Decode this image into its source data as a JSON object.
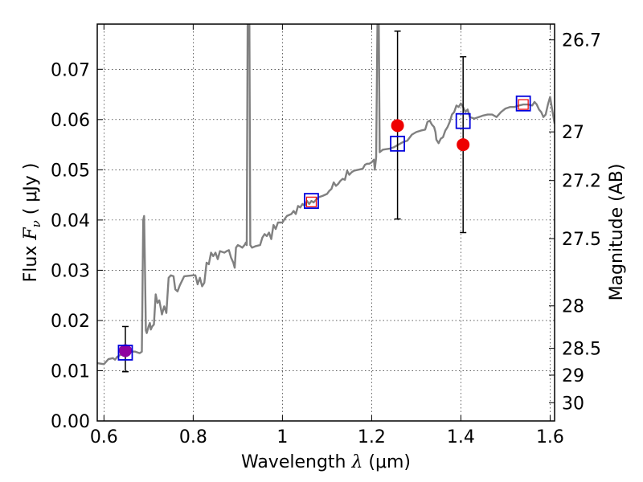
{
  "chart_data": {
    "type": "line",
    "xlabel_text": "Wavelength",
    "xlabel_symbol": "λ",
    "xlabel_unit": "(μm)",
    "ylabel_text": "Flux",
    "ylabel_symbol": "F",
    "ylabel_subscript": "ν",
    "ylabel_unit": "( μJy )",
    "y2label": "Magnitude (AB)",
    "xlim": [
      0.585,
      1.61
    ],
    "ylim": [
      0.0,
      0.079
    ],
    "grid": true,
    "x_ticks": [
      {
        "value": 0.6,
        "label": "0.6"
      },
      {
        "value": 0.8,
        "label": "0.8"
      },
      {
        "value": 1.0,
        "label": "1"
      },
      {
        "value": 1.2,
        "label": "1.2"
      },
      {
        "value": 1.4,
        "label": "1.4"
      },
      {
        "value": 1.6,
        "label": "1.6"
      }
    ],
    "y_ticks": [
      {
        "value": 0.0,
        "label": "0.00"
      },
      {
        "value": 0.01,
        "label": "0.01"
      },
      {
        "value": 0.02,
        "label": "0.02"
      },
      {
        "value": 0.03,
        "label": "0.03"
      },
      {
        "value": 0.04,
        "label": "0.04"
      },
      {
        "value": 0.05,
        "label": "0.05"
      },
      {
        "value": 0.06,
        "label": "0.06"
      },
      {
        "value": 0.07,
        "label": "0.07"
      }
    ],
    "y2_ticks": [
      {
        "value": 26.7,
        "label": "26.7"
      },
      {
        "value": 27.0,
        "label": "27"
      },
      {
        "value": 27.2,
        "label": "27.2"
      },
      {
        "value": 27.5,
        "label": "27.5"
      },
      {
        "value": 28.0,
        "label": "28"
      },
      {
        "value": 28.5,
        "label": "28.5"
      },
      {
        "value": 29.0,
        "label": "29"
      },
      {
        "value": 30.0,
        "label": "30"
      }
    ],
    "model_spectrum": {
      "color": "#808080",
      "points": [
        [
          0.585,
          0.0115
        ],
        [
          0.6,
          0.0113
        ],
        [
          0.61,
          0.0123
        ],
        [
          0.62,
          0.0125
        ],
        [
          0.625,
          0.0122
        ],
        [
          0.63,
          0.0128
        ],
        [
          0.64,
          0.0133
        ],
        [
          0.645,
          0.013
        ],
        [
          0.655,
          0.0132
        ],
        [
          0.66,
          0.0138
        ],
        [
          0.67,
          0.0138
        ],
        [
          0.68,
          0.0135
        ],
        [
          0.685,
          0.0138
        ],
        [
          0.688,
          0.04
        ],
        [
          0.69,
          0.0408
        ],
        [
          0.692,
          0.03
        ],
        [
          0.694,
          0.018
        ],
        [
          0.696,
          0.0175
        ],
        [
          0.7,
          0.0188
        ],
        [
          0.703,
          0.0195
        ],
        [
          0.705,
          0.0182
        ],
        [
          0.708,
          0.0188
        ],
        [
          0.712,
          0.0192
        ],
        [
          0.716,
          0.0252
        ],
        [
          0.72,
          0.0235
        ],
        [
          0.724,
          0.024
        ],
        [
          0.73,
          0.0212
        ],
        [
          0.735,
          0.0228
        ],
        [
          0.74,
          0.0215
        ],
        [
          0.745,
          0.0285
        ],
        [
          0.75,
          0.029
        ],
        [
          0.756,
          0.0288
        ],
        [
          0.76,
          0.0262
        ],
        [
          0.765,
          0.0258
        ],
        [
          0.77,
          0.027
        ],
        [
          0.78,
          0.0288
        ],
        [
          0.79,
          0.0289
        ],
        [
          0.8,
          0.029
        ],
        [
          0.805,
          0.029
        ],
        [
          0.81,
          0.0272
        ],
        [
          0.815,
          0.0285
        ],
        [
          0.82,
          0.0268
        ],
        [
          0.825,
          0.0275
        ],
        [
          0.83,
          0.0315
        ],
        [
          0.835,
          0.0312
        ],
        [
          0.84,
          0.0335
        ],
        [
          0.845,
          0.0328
        ],
        [
          0.85,
          0.0335
        ],
        [
          0.855,
          0.0322
        ],
        [
          0.86,
          0.0338
        ],
        [
          0.87,
          0.0335
        ],
        [
          0.875,
          0.0338
        ],
        [
          0.88,
          0.034
        ],
        [
          0.885,
          0.0325
        ],
        [
          0.89,
          0.0315
        ],
        [
          0.893,
          0.0305
        ],
        [
          0.896,
          0.0345
        ],
        [
          0.9,
          0.035
        ],
        [
          0.905,
          0.0348
        ],
        [
          0.91,
          0.0345
        ],
        [
          0.915,
          0.035
        ],
        [
          0.918,
          0.0355
        ],
        [
          0.92,
          0.035
        ],
        [
          0.922,
          0.079
        ],
        [
          0.926,
          0.079
        ],
        [
          0.928,
          0.035
        ],
        [
          0.932,
          0.0345
        ],
        [
          0.94,
          0.0348
        ],
        [
          0.95,
          0.035
        ],
        [
          0.955,
          0.0365
        ],
        [
          0.96,
          0.0372
        ],
        [
          0.965,
          0.0368
        ],
        [
          0.97,
          0.0375
        ],
        [
          0.975,
          0.0362
        ],
        [
          0.98,
          0.039
        ],
        [
          0.985,
          0.0382
        ],
        [
          0.99,
          0.0395
        ],
        [
          1.0,
          0.0395
        ],
        [
          1.005,
          0.0402
        ],
        [
          1.01,
          0.0408
        ],
        [
          1.015,
          0.041
        ],
        [
          1.02,
          0.0412
        ],
        [
          1.025,
          0.0418
        ],
        [
          1.03,
          0.0412
        ],
        [
          1.035,
          0.0428
        ],
        [
          1.04,
          0.0425
        ],
        [
          1.045,
          0.0432
        ],
        [
          1.05,
          0.0428
        ],
        [
          1.055,
          0.0438
        ],
        [
          1.06,
          0.0432
        ],
        [
          1.065,
          0.0438
        ],
        [
          1.07,
          0.0435
        ],
        [
          1.08,
          0.0445
        ],
        [
          1.09,
          0.0448
        ],
        [
          1.1,
          0.0452
        ],
        [
          1.105,
          0.0458
        ],
        [
          1.11,
          0.0462
        ],
        [
          1.115,
          0.0475
        ],
        [
          1.12,
          0.0468
        ],
        [
          1.125,
          0.0472
        ],
        [
          1.13,
          0.0478
        ],
        [
          1.135,
          0.0482
        ],
        [
          1.14,
          0.048
        ],
        [
          1.145,
          0.0498
        ],
        [
          1.15,
          0.049
        ],
        [
          1.155,
          0.0495
        ],
        [
          1.16,
          0.0498
        ],
        [
          1.17,
          0.05
        ],
        [
          1.18,
          0.0502
        ],
        [
          1.185,
          0.051
        ],
        [
          1.19,
          0.0512
        ],
        [
          1.195,
          0.0512
        ],
        [
          1.2,
          0.0515
        ],
        [
          1.205,
          0.052
        ],
        [
          1.207,
          0.05
        ],
        [
          1.21,
          0.0525
        ],
        [
          1.213,
          0.079
        ],
        [
          1.216,
          0.079
        ],
        [
          1.218,
          0.0535
        ],
        [
          1.225,
          0.054
        ],
        [
          1.24,
          0.0542
        ],
        [
          1.25,
          0.0545
        ],
        [
          1.26,
          0.055
        ],
        [
          1.27,
          0.0555
        ],
        [
          1.28,
          0.0558
        ],
        [
          1.29,
          0.057
        ],
        [
          1.3,
          0.0575
        ],
        [
          1.31,
          0.0578
        ],
        [
          1.32,
          0.058
        ],
        [
          1.325,
          0.0595
        ],
        [
          1.33,
          0.0598
        ],
        [
          1.335,
          0.059
        ],
        [
          1.34,
          0.0585
        ],
        [
          1.343,
          0.0575
        ],
        [
          1.345,
          0.056
        ],
        [
          1.35,
          0.0553
        ],
        [
          1.355,
          0.0562
        ],
        [
          1.36,
          0.0565
        ],
        [
          1.365,
          0.0578
        ],
        [
          1.37,
          0.0585
        ],
        [
          1.375,
          0.0595
        ],
        [
          1.38,
          0.061
        ],
        [
          1.385,
          0.0615
        ],
        [
          1.39,
          0.0628
        ],
        [
          1.395,
          0.0625
        ],
        [
          1.4,
          0.0632
        ],
        [
          1.405,
          0.0625
        ],
        [
          1.41,
          0.0615
        ],
        [
          1.415,
          0.062
        ],
        [
          1.42,
          0.0605
        ],
        [
          1.43,
          0.0602
        ],
        [
          1.44,
          0.0605
        ],
        [
          1.45,
          0.0608
        ],
        [
          1.46,
          0.061
        ],
        [
          1.47,
          0.061
        ],
        [
          1.48,
          0.0605
        ],
        [
          1.49,
          0.0615
        ],
        [
          1.5,
          0.0622
        ],
        [
          1.51,
          0.0625
        ],
        [
          1.52,
          0.0625
        ],
        [
          1.53,
          0.0628
        ],
        [
          1.54,
          0.063
        ],
        [
          1.55,
          0.063
        ],
        [
          1.56,
          0.0628
        ],
        [
          1.565,
          0.0635
        ],
        [
          1.57,
          0.063
        ],
        [
          1.575,
          0.062
        ],
        [
          1.58,
          0.0615
        ],
        [
          1.585,
          0.0605
        ],
        [
          1.59,
          0.061
        ],
        [
          1.595,
          0.063
        ],
        [
          1.6,
          0.0645
        ],
        [
          1.605,
          0.0618
        ],
        [
          1.61,
          0.0592
        ]
      ]
    },
    "observed_points": [
      {
        "x": 0.648,
        "y": 0.014,
        "yerr_low": 0.0098,
        "yerr_high": 0.0188,
        "color": "#9000a0"
      },
      {
        "x": 1.258,
        "y": 0.0588,
        "yerr_low": 0.0402,
        "yerr_high": 0.0776,
        "color": "#ee0000"
      },
      {
        "x": 1.405,
        "y": 0.055,
        "yerr_low": 0.0375,
        "yerr_high": 0.0725,
        "color": "#ee0000"
      }
    ],
    "model_band_points": [
      {
        "x": 0.648,
        "y": 0.0136
      },
      {
        "x": 1.065,
        "y": 0.0438
      },
      {
        "x": 1.258,
        "y": 0.0552
      },
      {
        "x": 1.405,
        "y": 0.0597
      },
      {
        "x": 1.54,
        "y": 0.0632
      }
    ],
    "extra_red_squares": [
      {
        "x": 1.065,
        "y": 0.0436
      },
      {
        "x": 1.54,
        "y": 0.063
      }
    ],
    "colors": {
      "spectrum": "#808080",
      "model_square": "#0000dd",
      "inner_square": "#ee0000",
      "errorbar": "#000000",
      "grid": "#000000"
    }
  }
}
